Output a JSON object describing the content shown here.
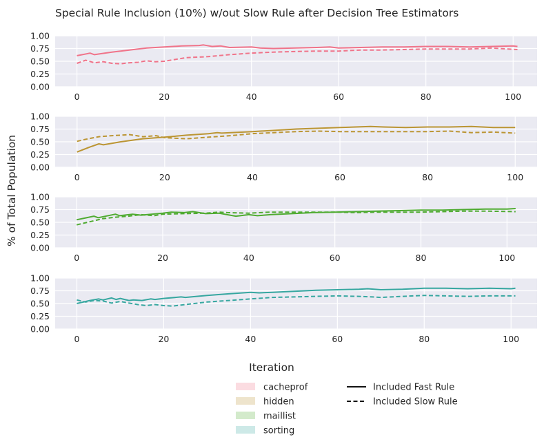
{
  "chart_data": {
    "type": "line",
    "title": "Special Rule Inclusion (10%) w/out Slow Rule after Decision Tree Estimators",
    "xlabel": "Iteration",
    "ylabel": "% of Total Population",
    "yticks": [
      "0.00",
      "0.25",
      "0.50",
      "0.75",
      "1.00"
    ],
    "ylim": [
      0,
      1
    ],
    "grid": true,
    "legend_placement": "bottom-center",
    "legend_groups": [
      "cacheprof",
      "hidden",
      "maillist",
      "sorting"
    ],
    "legend_styles": [
      {
        "label": "Included Fast Rule",
        "dash": "solid"
      },
      {
        "label": "Included Slow Rule",
        "dash": "dashed"
      }
    ],
    "panels": [
      {
        "name": "cacheprof",
        "color": "#f07389",
        "xlim": [
          -5,
          105.5
        ],
        "xticks": [
          0,
          20,
          40,
          60,
          80,
          100
        ],
        "series": [
          {
            "style": "Included Fast Rule",
            "x": [
              0,
              3,
              4,
              8,
              12,
              16,
              20,
              24,
              28,
              29,
              31,
              33,
              35,
              40,
              42,
              45,
              50,
              55,
              58,
              60,
              65,
              70,
              75,
              80,
              85,
              90,
              95,
              100,
              101
            ],
            "y": [
              0.61,
              0.66,
              0.63,
              0.68,
              0.72,
              0.76,
              0.78,
              0.8,
              0.81,
              0.82,
              0.79,
              0.8,
              0.77,
              0.78,
              0.76,
              0.75,
              0.76,
              0.77,
              0.78,
              0.76,
              0.77,
              0.78,
              0.78,
              0.79,
              0.79,
              0.78,
              0.79,
              0.8,
              0.79
            ]
          },
          {
            "style": "Included Slow Rule",
            "x": [
              0,
              2,
              4,
              6,
              8,
              10,
              12,
              14,
              16,
              18,
              20,
              25,
              30,
              35,
              40,
              45,
              50,
              55,
              60,
              65,
              70,
              75,
              80,
              85,
              90,
              95,
              101
            ],
            "y": [
              0.46,
              0.52,
              0.47,
              0.49,
              0.46,
              0.45,
              0.47,
              0.48,
              0.51,
              0.49,
              0.5,
              0.57,
              0.59,
              0.63,
              0.66,
              0.68,
              0.69,
              0.7,
              0.7,
              0.72,
              0.72,
              0.73,
              0.74,
              0.74,
              0.74,
              0.76,
              0.73
            ]
          }
        ]
      },
      {
        "name": "hidden",
        "color": "#bb9533",
        "xlim": [
          -5,
          105
        ],
        "xticks": [
          0,
          20,
          40,
          60,
          80,
          100
        ],
        "series": [
          {
            "style": "Included Fast Rule",
            "x": [
              0,
              3,
              5,
              6,
              10,
              15,
              20,
              25,
              30,
              32,
              33,
              40,
              50,
              60,
              67,
              70,
              75,
              80,
              85,
              90,
              95,
              100
            ],
            "y": [
              0.3,
              0.4,
              0.46,
              0.44,
              0.5,
              0.56,
              0.59,
              0.63,
              0.66,
              0.68,
              0.67,
              0.7,
              0.75,
              0.78,
              0.8,
              0.79,
              0.78,
              0.79,
              0.79,
              0.8,
              0.78,
              0.78
            ]
          },
          {
            "style": "Included Slow Rule",
            "x": [
              0,
              2,
              5,
              8,
              10,
              12,
              15,
              18,
              20,
              25,
              30,
              35,
              40,
              45,
              50,
              55,
              60,
              65,
              70,
              75,
              80,
              85,
              90,
              95,
              100
            ],
            "y": [
              0.51,
              0.55,
              0.6,
              0.62,
              0.63,
              0.64,
              0.6,
              0.62,
              0.58,
              0.56,
              0.59,
              0.62,
              0.66,
              0.68,
              0.7,
              0.71,
              0.7,
              0.7,
              0.7,
              0.7,
              0.7,
              0.71,
              0.68,
              0.69,
              0.67
            ]
          }
        ]
      },
      {
        "name": "maillist",
        "color": "#4fab31",
        "xlim": [
          -5,
          107
        ],
        "xticks": [
          0,
          20,
          40,
          60,
          80,
          100
        ],
        "series": [
          {
            "style": "Included Fast Rule",
            "x": [
              0,
              4,
              5,
              9,
              10,
              13,
              15,
              20,
              22,
              25,
              27,
              30,
              33,
              37,
              40,
              42,
              45,
              50,
              55,
              60,
              65,
              70,
              75,
              80,
              85,
              90,
              95,
              100,
              102
            ],
            "y": [
              0.55,
              0.62,
              0.59,
              0.66,
              0.63,
              0.66,
              0.64,
              0.68,
              0.7,
              0.69,
              0.71,
              0.67,
              0.68,
              0.62,
              0.65,
              0.63,
              0.65,
              0.67,
              0.69,
              0.7,
              0.71,
              0.72,
              0.73,
              0.74,
              0.74,
              0.75,
              0.76,
              0.76,
              0.77
            ]
          },
          {
            "style": "Included Slow Rule",
            "x": [
              0,
              3,
              6,
              9,
              12,
              15,
              18,
              20,
              25,
              30,
              33,
              35,
              40,
              45,
              50,
              55,
              60,
              65,
              70,
              75,
              80,
              85,
              90,
              95,
              102
            ],
            "y": [
              0.45,
              0.51,
              0.57,
              0.6,
              0.62,
              0.65,
              0.63,
              0.66,
              0.67,
              0.68,
              0.7,
              0.69,
              0.68,
              0.7,
              0.7,
              0.7,
              0.7,
              0.69,
              0.7,
              0.7,
              0.7,
              0.71,
              0.72,
              0.72,
              0.71
            ]
          }
        ]
      },
      {
        "name": "sorting",
        "color": "#36a7a0",
        "xlim": [
          -5,
          106
        ],
        "xticks": [
          0,
          20,
          40,
          60,
          80,
          100
        ],
        "series": [
          {
            "style": "Included Fast Rule",
            "x": [
              0,
              3,
              5,
              6,
              8,
              9,
              10,
              12,
              13,
              15,
              17,
              18,
              20,
              24,
              25,
              30,
              35,
              40,
              42,
              45,
              50,
              55,
              60,
              65,
              67,
              70,
              75,
              80,
              85,
              90,
              95,
              100,
              101
            ],
            "y": [
              0.5,
              0.56,
              0.59,
              0.57,
              0.61,
              0.58,
              0.6,
              0.56,
              0.57,
              0.56,
              0.59,
              0.58,
              0.6,
              0.63,
              0.62,
              0.66,
              0.69,
              0.72,
              0.71,
              0.72,
              0.74,
              0.76,
              0.77,
              0.78,
              0.79,
              0.77,
              0.78,
              0.8,
              0.8,
              0.79,
              0.8,
              0.79,
              0.8
            ]
          },
          {
            "style": "Included Slow Rule",
            "x": [
              0,
              2,
              4,
              6,
              8,
              10,
              12,
              14,
              16,
              18,
              20,
              22,
              25,
              30,
              35,
              40,
              45,
              50,
              55,
              60,
              65,
              68,
              70,
              75,
              80,
              85,
              90,
              95,
              101
            ],
            "y": [
              0.57,
              0.53,
              0.56,
              0.55,
              0.51,
              0.54,
              0.51,
              0.48,
              0.46,
              0.48,
              0.46,
              0.45,
              0.48,
              0.53,
              0.56,
              0.59,
              0.62,
              0.63,
              0.64,
              0.65,
              0.64,
              0.63,
              0.62,
              0.64,
              0.66,
              0.65,
              0.64,
              0.65,
              0.65
            ]
          }
        ]
      }
    ]
  }
}
